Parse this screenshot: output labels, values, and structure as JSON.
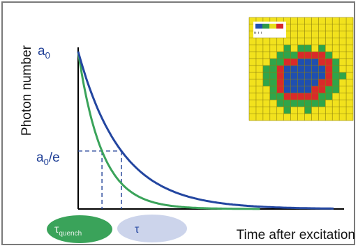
{
  "chart_data": {
    "type": "line",
    "ylabel": "Photon number",
    "xlabel": "Time after excitation",
    "y_tick_a0_base": "a",
    "y_tick_a0_sub": "0",
    "y_tick_a0e_base": "a",
    "y_tick_a0e_sub": "0",
    "y_tick_a0e_suffix": "/e",
    "series": [
      {
        "id": "unquenched",
        "color": "#2346a0",
        "tau": 1.0
      },
      {
        "id": "quenched",
        "color": "#3aa35a",
        "tau": 0.55
      }
    ],
    "x_domain": [
      0,
      5.9
    ],
    "y_domain": [
      0,
      1
    ],
    "guide_y": 0.3679,
    "guide_x_tau": 1.0,
    "guide_x_tau_quench": 0.55,
    "ellipse_labels": {
      "tau_quench_symbol": "τ",
      "tau_quench_sub": "quench",
      "tau_symbol": "τ"
    },
    "inset": {
      "legend_colors": [
        "#1f4fb0",
        "#2e9a4a",
        "#e6de1a",
        "#d8282a"
      ],
      "legend_text": "ᵗᵗ ᵗ ᵗ",
      "colors": {
        "Y": "#f2e21d",
        "G": "#2fa54a",
        "R": "#d92a2a",
        "B": "#1f4fb0",
        "W": "#ffffff"
      },
      "grid": [
        "YYYYYYYYYYYYYYY",
        "YYYYYYYYYYYYYYY",
        "YYYYYYYYYYYYYYY",
        "YYYYYYYYYYYYYYY",
        "YYYYYGYGGYGYYYY",
        "YYYYGGGRRRRGYYY",
        "YYYGGRRBBBRRGYY",
        "YYGGRBBBBBBRGYY",
        "YYGGRBBBBBBRGGY",
        "YYGGRBBBBBRRGYY",
        "YYYGRBBBBRRGGYY",
        "YYYGGRRRRRGGYYY",
        "YYYYGGGGGGGYYYY",
        "YYYYYGYYGYYYYYY",
        "YYYYYYYYYYYYYYY"
      ]
    }
  }
}
